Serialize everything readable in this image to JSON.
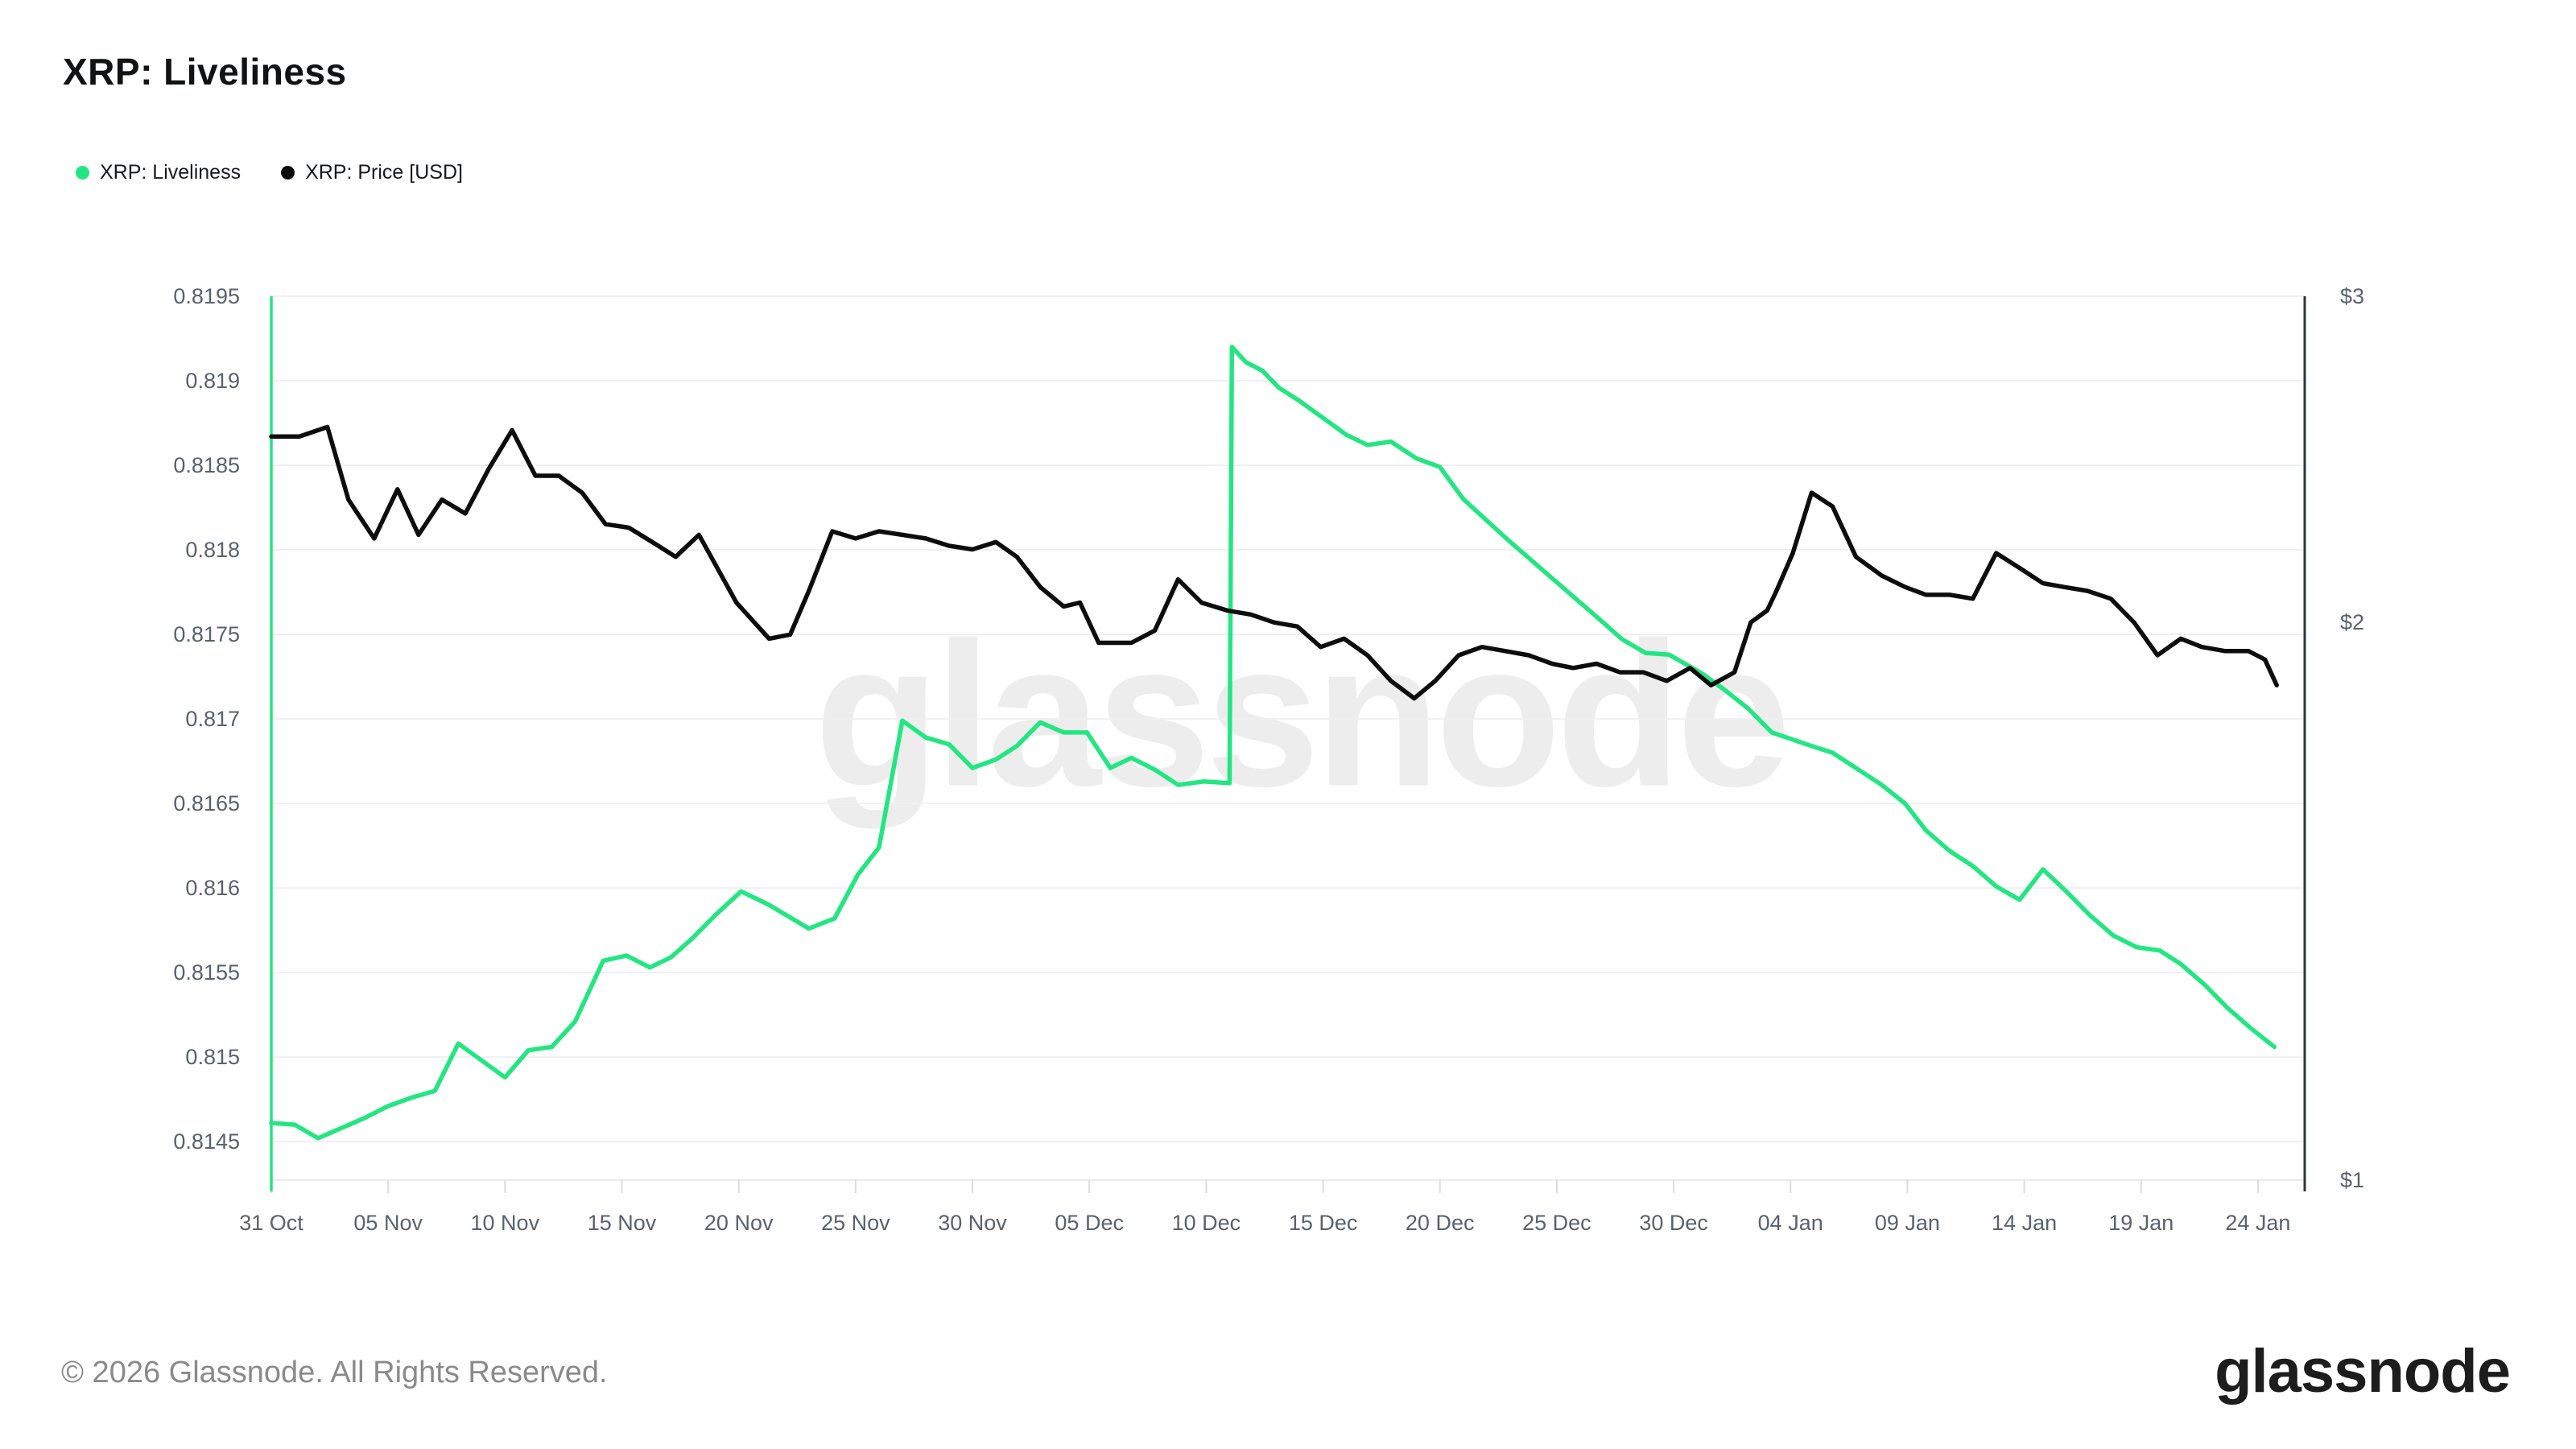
{
  "header": {
    "title": "XRP: Liveliness"
  },
  "legend": {
    "items": [
      {
        "label": "XRP: Liveliness",
        "color": "#23e682"
      },
      {
        "label": "XRP: Price [USD]",
        "color": "#0d0d0d"
      }
    ]
  },
  "watermark_text": "glassnode",
  "footer": {
    "copyright": "© 2026 Glassnode. All Rights Reserved.",
    "logo_text": "glassnode"
  },
  "chart_data": {
    "type": "line",
    "title": "XRP: Liveliness",
    "grid": "horizontal-only",
    "legend_position": "top-left",
    "colors": {
      "liveliness": "#23e682",
      "price": "#0d0d0d",
      "gridline": "#eef0f3",
      "axis_label": "#59616f"
    },
    "x_axis": {
      "unit": "days since 31 Oct",
      "max_day": 87,
      "tick_days": [
        0,
        5,
        10,
        15,
        20,
        25,
        30,
        35,
        40,
        45,
        50,
        55,
        60,
        65,
        70,
        75,
        80,
        85
      ],
      "tick_labels": [
        "31 Oct",
        "05 Nov",
        "10 Nov",
        "15 Nov",
        "20 Nov",
        "25 Nov",
        "30 Nov",
        "05 Dec",
        "10 Dec",
        "15 Dec",
        "20 Dec",
        "25 Dec",
        "30 Dec",
        "04 Jan",
        "09 Jan",
        "14 Jan",
        "19 Jan",
        "24 Jan"
      ]
    },
    "left_axis": {
      "title": "XRP: Liveliness",
      "scale": "linear",
      "min": 0.814272,
      "max": 0.8195,
      "ticks": [
        0.8195,
        0.819,
        0.8185,
        0.818,
        0.8175,
        0.817,
        0.8165,
        0.816,
        0.8155,
        0.815,
        0.8145
      ],
      "tick_labels": [
        "0.8195",
        "0.819",
        "0.8185",
        "0.818",
        "0.8175",
        "0.817",
        "0.8165",
        "0.816",
        "0.8155",
        "0.815",
        "0.8145"
      ],
      "axis_line_color": "#23e682"
    },
    "right_axis": {
      "title": "XRP: Price [USD]",
      "scale": "log",
      "min": 1,
      "max": 3,
      "ticks": [
        3,
        2,
        1
      ],
      "tick_labels": [
        "$3",
        "$2",
        "$1"
      ],
      "axis_line_color": "#2f343b"
    },
    "series": [
      {
        "name": "XRP: Liveliness",
        "axis": "left",
        "color": "#23e682",
        "points": [
          [
            0,
            0.81461
          ],
          [
            1,
            0.8146
          ],
          [
            2,
            0.81452
          ],
          [
            3,
            0.81458
          ],
          [
            4,
            0.81464
          ],
          [
            5,
            0.81471
          ],
          [
            6,
            0.81476
          ],
          [
            7,
            0.8148
          ],
          [
            8,
            0.81508
          ],
          [
            9,
            0.81498
          ],
          [
            10,
            0.81488
          ],
          [
            11,
            0.81504
          ],
          [
            12,
            0.81506
          ],
          [
            13,
            0.81521
          ],
          [
            14.2,
            0.81557
          ],
          [
            15.2,
            0.8156
          ],
          [
            16.2,
            0.81553
          ],
          [
            17.1,
            0.81559
          ],
          [
            18,
            0.8157
          ],
          [
            19,
            0.81584
          ],
          [
            20.1,
            0.81598
          ],
          [
            21.3,
            0.8159
          ],
          [
            23,
            0.81576
          ],
          [
            24.1,
            0.81582
          ],
          [
            25.1,
            0.81608
          ],
          [
            26,
            0.81624
          ],
          [
            27,
            0.81699
          ],
          [
            28,
            0.81689
          ],
          [
            29,
            0.81685
          ],
          [
            30,
            0.81671
          ],
          [
            31,
            0.81676
          ],
          [
            31.9,
            0.81684
          ],
          [
            32.9,
            0.81698
          ],
          [
            33.9,
            0.81692
          ],
          [
            34.9,
            0.81692
          ],
          [
            35.9,
            0.81671
          ],
          [
            36.8,
            0.81677
          ],
          [
            37.8,
            0.8167
          ],
          [
            38.8,
            0.81661
          ],
          [
            39.9,
            0.81663
          ],
          [
            41,
            0.81662
          ],
          [
            41.1,
            0.8192
          ],
          [
            41.7,
            0.81911
          ],
          [
            42.4,
            0.81906
          ],
          [
            43.1,
            0.81896
          ],
          [
            44,
            0.81888
          ],
          [
            45,
            0.81878
          ],
          [
            46,
            0.81868
          ],
          [
            46.9,
            0.81862
          ],
          [
            47.9,
            0.81864
          ],
          [
            49,
            0.81854
          ],
          [
            50,
            0.81849
          ],
          [
            51,
            0.8183
          ],
          [
            52.9,
            0.81806
          ],
          [
            54.9,
            0.81782
          ],
          [
            56.9,
            0.81758
          ],
          [
            57.8,
            0.81747
          ],
          [
            58.8,
            0.81739
          ],
          [
            59.8,
            0.81738
          ],
          [
            61.2,
            0.81727
          ],
          [
            62.2,
            0.81717
          ],
          [
            63.2,
            0.81706
          ],
          [
            64.2,
            0.81692
          ],
          [
            65.9,
            0.81684
          ],
          [
            66.8,
            0.8168
          ],
          [
            67.8,
            0.81671
          ],
          [
            68.9,
            0.81661
          ],
          [
            69.9,
            0.8165
          ],
          [
            70.8,
            0.81634
          ],
          [
            71.8,
            0.81622
          ],
          [
            72.8,
            0.81613
          ],
          [
            73.8,
            0.81601
          ],
          [
            74.8,
            0.81593
          ],
          [
            75.8,
            0.81611
          ],
          [
            76.8,
            0.81598
          ],
          [
            77.8,
            0.81584
          ],
          [
            78.8,
            0.81572
          ],
          [
            79.8,
            0.81565
          ],
          [
            80.8,
            0.81563
          ],
          [
            81.7,
            0.81555
          ],
          [
            82.7,
            0.81543
          ],
          [
            83.7,
            0.81529
          ],
          [
            84.7,
            0.81517
          ],
          [
            85.7,
            0.81506
          ]
        ]
      },
      {
        "name": "XRP: Price [USD]",
        "axis": "right",
        "color": "#0d0d0d",
        "points": [
          [
            0,
            2.52
          ],
          [
            1.2,
            2.52
          ],
          [
            2.4,
            2.55
          ],
          [
            3.3,
            2.33
          ],
          [
            4.4,
            2.22
          ],
          [
            5.4,
            2.36
          ],
          [
            6.3,
            2.23
          ],
          [
            7.3,
            2.33
          ],
          [
            8.3,
            2.29
          ],
          [
            9.3,
            2.42
          ],
          [
            10.3,
            2.54
          ],
          [
            11.3,
            2.4
          ],
          [
            12.3,
            2.4
          ],
          [
            13.3,
            2.35
          ],
          [
            14.3,
            2.26
          ],
          [
            15.3,
            2.25
          ],
          [
            16.3,
            2.21
          ],
          [
            17.3,
            2.17
          ],
          [
            18.3,
            2.23
          ],
          [
            19.9,
            2.05
          ],
          [
            21.3,
            1.96
          ],
          [
            22.2,
            1.97
          ],
          [
            23,
            2.08
          ],
          [
            24,
            2.24
          ],
          [
            25,
            2.22
          ],
          [
            26,
            2.24
          ],
          [
            27,
            2.23
          ],
          [
            28,
            2.22
          ],
          [
            29,
            2.2
          ],
          [
            30,
            2.19
          ],
          [
            31,
            2.21
          ],
          [
            31.9,
            2.17
          ],
          [
            32.9,
            2.09
          ],
          [
            33.9,
            2.04
          ],
          [
            34.6,
            2.05
          ],
          [
            35.4,
            1.95
          ],
          [
            36.8,
            1.95
          ],
          [
            37.8,
            1.98
          ],
          [
            38.8,
            2.11
          ],
          [
            39.8,
            2.05
          ],
          [
            40.9,
            2.03
          ],
          [
            41.9,
            2.02
          ],
          [
            42.9,
            2.0
          ],
          [
            43.9,
            1.99
          ],
          [
            44.9,
            1.94
          ],
          [
            45.9,
            1.96
          ],
          [
            46.9,
            1.92
          ],
          [
            47.9,
            1.86
          ],
          [
            48.9,
            1.82
          ],
          [
            49.8,
            1.86
          ],
          [
            50.8,
            1.92
          ],
          [
            51.8,
            1.94
          ],
          [
            52.8,
            1.93
          ],
          [
            53.8,
            1.92
          ],
          [
            54.8,
            1.9
          ],
          [
            55.7,
            1.89
          ],
          [
            56.7,
            1.9
          ],
          [
            57.7,
            1.88
          ],
          [
            58.7,
            1.88
          ],
          [
            59.7,
            1.86
          ],
          [
            60.7,
            1.89
          ],
          [
            61.6,
            1.85
          ],
          [
            62.6,
            1.88
          ],
          [
            63.3,
            2.0
          ],
          [
            64,
            2.03
          ],
          [
            64.4,
            2.08
          ],
          [
            65.1,
            2.18
          ],
          [
            65.9,
            2.35
          ],
          [
            66.8,
            2.31
          ],
          [
            67.8,
            2.17
          ],
          [
            68.9,
            2.12
          ],
          [
            69.9,
            2.09
          ],
          [
            70.8,
            2.07
          ],
          [
            71.8,
            2.07
          ],
          [
            72.8,
            2.06
          ],
          [
            73.8,
            2.18
          ],
          [
            74.8,
            2.14
          ],
          [
            75.8,
            2.1
          ],
          [
            76.7,
            2.09
          ],
          [
            77.7,
            2.08
          ],
          [
            78.7,
            2.06
          ],
          [
            79.7,
            2.0
          ],
          [
            80.7,
            1.92
          ],
          [
            81.7,
            1.96
          ],
          [
            82.6,
            1.94
          ],
          [
            83.6,
            1.93
          ],
          [
            84.6,
            1.93
          ],
          [
            85.3,
            1.91
          ],
          [
            85.8,
            1.85
          ]
        ]
      }
    ]
  }
}
